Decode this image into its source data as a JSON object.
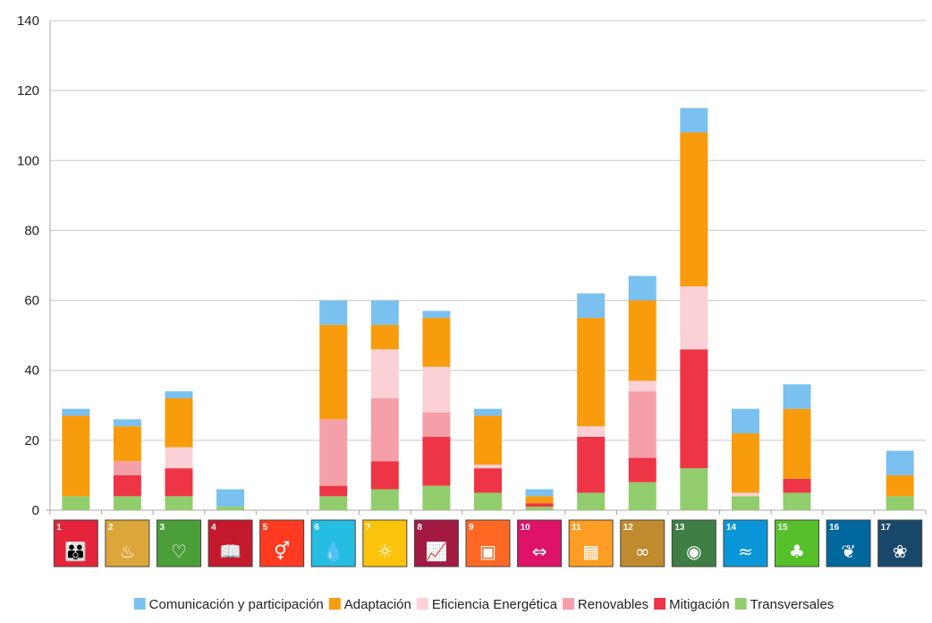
{
  "chart_data": {
    "type": "bar",
    "stacked": true,
    "title": "",
    "xlabel": "",
    "ylabel": "",
    "ylim": [
      0,
      140
    ],
    "yticks": [
      0,
      20,
      40,
      60,
      80,
      100,
      120,
      140
    ],
    "grid": true,
    "legend_position": "bottom",
    "categories": [
      "1",
      "2",
      "3",
      "4",
      "5",
      "6",
      "7",
      "8",
      "9",
      "10",
      "11",
      "12",
      "13",
      "14",
      "15",
      "16",
      "17"
    ],
    "category_colors": [
      "#e5243b",
      "#dda63a",
      "#4c9f38",
      "#c5192d",
      "#ff3a21",
      "#26bde2",
      "#fcc30b",
      "#a21942",
      "#fd6925",
      "#dd1367",
      "#fd9d24",
      "#bf8b2e",
      "#3f7e44",
      "#0a97d9",
      "#56c02b",
      "#00689d",
      "#19486a"
    ],
    "category_icons": [
      "family-icon",
      "bowl-icon",
      "heartbeat-icon",
      "book-icon",
      "gender-icon",
      "water-drop-icon",
      "sun-icon",
      "growth-chart-icon",
      "cubes-icon",
      "equality-icon",
      "buildings-icon",
      "infinity-icon",
      "eye-earth-icon",
      "fish-icon",
      "tree-icon",
      "dove-icon",
      "rings-icon"
    ],
    "series": [
      {
        "name": "Transversales",
        "color": "#92cd6d",
        "values": [
          4,
          4,
          4,
          1,
          0,
          4,
          6,
          7,
          5,
          1,
          5,
          8,
          12,
          4,
          5,
          0,
          4
        ]
      },
      {
        "name": "Mitigación",
        "color": "#ee3545",
        "values": [
          0,
          6,
          8,
          0,
          0,
          3,
          8,
          14,
          7,
          1,
          16,
          7,
          34,
          0,
          4,
          0,
          0
        ]
      },
      {
        "name": "Renovables",
        "color": "#f5a0a8",
        "values": [
          0,
          4,
          0,
          0,
          0,
          19,
          18,
          7,
          0,
          0,
          0,
          19,
          0,
          0,
          0,
          0,
          0
        ]
      },
      {
        "name": "Eficiencia Energética",
        "color": "#fbd1d6",
        "values": [
          0,
          0,
          6,
          0,
          0,
          0,
          14,
          13,
          1,
          0,
          3,
          3,
          18,
          1,
          0,
          0,
          0
        ]
      },
      {
        "name": "Adaptación",
        "color": "#f89c0e",
        "values": [
          23,
          10,
          14,
          0,
          0,
          27,
          7,
          14,
          14,
          2,
          31,
          23,
          44,
          17,
          20,
          0,
          6
        ]
      },
      {
        "name": "Comunicación y participación",
        "color": "#7ac1f0",
        "values": [
          2,
          2,
          2,
          5,
          0,
          7,
          7,
          2,
          2,
          2,
          7,
          7,
          7,
          7,
          7,
          0,
          7
        ]
      }
    ],
    "legend_order": [
      "Comunicación y participación",
      "Adaptación",
      "Eficiencia Energética",
      "Renovables",
      "Mitigación",
      "Transversales"
    ]
  }
}
